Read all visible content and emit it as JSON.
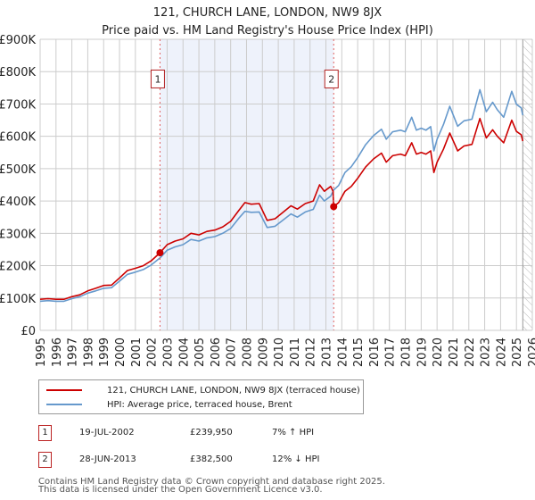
{
  "chart_data": {
    "type": "line",
    "title": "121, CHURCH LANE, LONDON, NW9 8JX",
    "subtitle": "Price paid vs. HM Land Registry's House Price Index (HPI)",
    "xlabel": "",
    "ylabel": "",
    "xlim": [
      1995,
      2026
    ],
    "ylim": [
      0,
      900000
    ],
    "grid": true,
    "y_ticks": [
      {
        "value": 0,
        "label": "£0"
      },
      {
        "value": 100000,
        "label": "£100K"
      },
      {
        "value": 200000,
        "label": "£200K"
      },
      {
        "value": 300000,
        "label": "£300K"
      },
      {
        "value": 400000,
        "label": "£400K"
      },
      {
        "value": 500000,
        "label": "£500K"
      },
      {
        "value": 600000,
        "label": "£600K"
      },
      {
        "value": 700000,
        "label": "£700K"
      },
      {
        "value": 800000,
        "label": "£800K"
      },
      {
        "value": 900000,
        "label": "£900K"
      }
    ],
    "x_ticks": [
      "1995",
      "1996",
      "1997",
      "1998",
      "1999",
      "2000",
      "2001",
      "2002",
      "2003",
      "2004",
      "2005",
      "2006",
      "2007",
      "2008",
      "2009",
      "2010",
      "2011",
      "2012",
      "2013",
      "2014",
      "2015",
      "2016",
      "2017",
      "2018",
      "2019",
      "2020",
      "2021",
      "2022",
      "2023",
      "2024",
      "2025",
      "2026"
    ],
    "shaded_region": {
      "from": 2002.55,
      "to": 2013.49,
      "color": "#eef2fb"
    },
    "hatched_region": {
      "from": 2025.4,
      "to": 2026
    },
    "series": [
      {
        "name": "121, CHURCH LANE, LONDON, NW9 8JX (terraced house)",
        "color": "#cc0000",
        "points": [
          [
            1995.0,
            96000
          ],
          [
            1995.5,
            98000
          ],
          [
            1996.0,
            96000
          ],
          [
            1996.5,
            96000
          ],
          [
            1997.0,
            104000
          ],
          [
            1997.5,
            110000
          ],
          [
            1998.0,
            122000
          ],
          [
            1998.5,
            130000
          ],
          [
            1999.0,
            139000
          ],
          [
            1999.5,
            140000
          ],
          [
            2000.0,
            162000
          ],
          [
            2000.5,
            185000
          ],
          [
            2001.0,
            192000
          ],
          [
            2001.5,
            200000
          ],
          [
            2002.0,
            215000
          ],
          [
            2002.55,
            239950
          ],
          [
            2003.0,
            265000
          ],
          [
            2003.5,
            276000
          ],
          [
            2004.0,
            283000
          ],
          [
            2004.5,
            300000
          ],
          [
            2005.0,
            295000
          ],
          [
            2005.5,
            306000
          ],
          [
            2006.0,
            310000
          ],
          [
            2006.5,
            320000
          ],
          [
            2007.0,
            337000
          ],
          [
            2007.5,
            370000
          ],
          [
            2007.9,
            395000
          ],
          [
            2008.3,
            390000
          ],
          [
            2008.8,
            392000
          ],
          [
            2009.3,
            340000
          ],
          [
            2009.8,
            345000
          ],
          [
            2010.3,
            365000
          ],
          [
            2010.8,
            385000
          ],
          [
            2011.2,
            375000
          ],
          [
            2011.7,
            392000
          ],
          [
            2012.2,
            400000
          ],
          [
            2012.6,
            450000
          ],
          [
            2012.9,
            430000
          ],
          [
            2013.3,
            445000
          ],
          [
            2013.45,
            430000
          ],
          [
            2013.49,
            382500
          ],
          [
            2013.8,
            395000
          ],
          [
            2014.2,
            430000
          ],
          [
            2014.6,
            445000
          ],
          [
            2015.0,
            470000
          ],
          [
            2015.5,
            505000
          ],
          [
            2016.0,
            530000
          ],
          [
            2016.5,
            548000
          ],
          [
            2016.8,
            520000
          ],
          [
            2017.2,
            540000
          ],
          [
            2017.7,
            545000
          ],
          [
            2018.0,
            540000
          ],
          [
            2018.4,
            580000
          ],
          [
            2018.7,
            545000
          ],
          [
            2019.0,
            550000
          ],
          [
            2019.3,
            545000
          ],
          [
            2019.6,
            555000
          ],
          [
            2019.8,
            488000
          ],
          [
            2020.0,
            520000
          ],
          [
            2020.4,
            560000
          ],
          [
            2020.8,
            610000
          ],
          [
            2021.3,
            555000
          ],
          [
            2021.7,
            570000
          ],
          [
            2022.2,
            575000
          ],
          [
            2022.7,
            655000
          ],
          [
            2023.1,
            595000
          ],
          [
            2023.5,
            620000
          ],
          [
            2023.8,
            600000
          ],
          [
            2024.2,
            580000
          ],
          [
            2024.7,
            650000
          ],
          [
            2025.0,
            615000
          ],
          [
            2025.3,
            605000
          ],
          [
            2025.4,
            585000
          ]
        ]
      },
      {
        "name": "HPI: Average price, terraced house, Brent",
        "color": "#6699cc",
        "points": [
          [
            1995.0,
            90000
          ],
          [
            1995.5,
            92000
          ],
          [
            1996.0,
            90000
          ],
          [
            1996.5,
            90000
          ],
          [
            1997.0,
            98000
          ],
          [
            1997.5,
            104000
          ],
          [
            1998.0,
            115000
          ],
          [
            1998.5,
            122000
          ],
          [
            1999.0,
            130000
          ],
          [
            1999.5,
            132000
          ],
          [
            2000.0,
            152000
          ],
          [
            2000.5,
            173000
          ],
          [
            2001.0,
            180000
          ],
          [
            2001.5,
            188000
          ],
          [
            2002.0,
            202000
          ],
          [
            2002.55,
            224000
          ],
          [
            2003.0,
            248000
          ],
          [
            2003.5,
            258000
          ],
          [
            2004.0,
            265000
          ],
          [
            2004.5,
            281000
          ],
          [
            2005.0,
            276000
          ],
          [
            2005.5,
            286000
          ],
          [
            2006.0,
            290000
          ],
          [
            2006.5,
            300000
          ],
          [
            2007.0,
            315000
          ],
          [
            2007.5,
            346000
          ],
          [
            2007.9,
            368000
          ],
          [
            2008.3,
            365000
          ],
          [
            2008.8,
            366000
          ],
          [
            2009.3,
            318000
          ],
          [
            2009.8,
            322000
          ],
          [
            2010.3,
            341000
          ],
          [
            2010.8,
            360000
          ],
          [
            2011.2,
            350000
          ],
          [
            2011.7,
            366000
          ],
          [
            2012.2,
            374000
          ],
          [
            2012.6,
            418000
          ],
          [
            2012.9,
            400000
          ],
          [
            2013.3,
            415000
          ],
          [
            2013.49,
            434000
          ],
          [
            2013.8,
            448000
          ],
          [
            2014.2,
            488000
          ],
          [
            2014.6,
            506000
          ],
          [
            2015.0,
            534000
          ],
          [
            2015.5,
            574000
          ],
          [
            2016.0,
            602000
          ],
          [
            2016.5,
            622000
          ],
          [
            2016.8,
            591000
          ],
          [
            2017.2,
            614000
          ],
          [
            2017.7,
            619000
          ],
          [
            2018.0,
            614000
          ],
          [
            2018.4,
            659000
          ],
          [
            2018.7,
            619000
          ],
          [
            2019.0,
            625000
          ],
          [
            2019.3,
            619000
          ],
          [
            2019.6,
            630000
          ],
          [
            2019.8,
            555000
          ],
          [
            2020.0,
            591000
          ],
          [
            2020.4,
            636000
          ],
          [
            2020.8,
            693000
          ],
          [
            2021.3,
            631000
          ],
          [
            2021.7,
            648000
          ],
          [
            2022.2,
            653000
          ],
          [
            2022.7,
            744000
          ],
          [
            2023.1,
            676000
          ],
          [
            2023.5,
            705000
          ],
          [
            2023.8,
            682000
          ],
          [
            2024.2,
            659000
          ],
          [
            2024.7,
            739000
          ],
          [
            2025.0,
            699000
          ],
          [
            2025.3,
            688000
          ],
          [
            2025.4,
            665000
          ]
        ]
      }
    ],
    "annotations": [
      {
        "label": "1",
        "x": 2002.55,
        "price": 239950,
        "box_value": 780000
      },
      {
        "label": "2",
        "x": 2013.49,
        "price": 382500,
        "box_value": 780000
      }
    ]
  },
  "legend": {
    "items": [
      {
        "label": "121, CHURCH LANE, LONDON, NW9 8JX (terraced house)",
        "color": "#cc0000"
      },
      {
        "label": "HPI: Average price, terraced house, Brent",
        "color": "#6699cc"
      }
    ]
  },
  "sales": [
    {
      "num": "1",
      "date": "19-JUL-2002",
      "price": "£239,950",
      "hpi": "7% ↑ HPI"
    },
    {
      "num": "2",
      "date": "28-JUN-2013",
      "price": "£382,500",
      "hpi": "12% ↓ HPI"
    }
  ],
  "footer": {
    "line1": "Contains HM Land Registry data © Crown copyright and database right 2025.",
    "line2": "This data is licensed under the Open Government Licence v3.0."
  }
}
